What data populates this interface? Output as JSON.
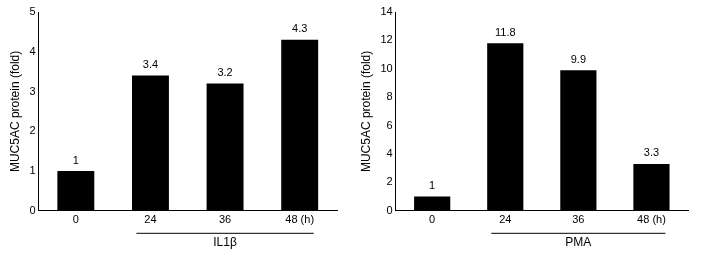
{
  "chart_data": [
    {
      "type": "bar",
      "ylabel": "MUC5AC protein (fold)",
      "categories": [
        "0",
        "24",
        "36",
        "48 (h)"
      ],
      "values": [
        1,
        3.4,
        3.2,
        4.3
      ],
      "color": "#000000",
      "ylim": [
        0,
        5
      ],
      "yticks": [
        0,
        1,
        2,
        3,
        4,
        5
      ],
      "grid": false,
      "data_labels": true,
      "annotation": "IL1β"
    },
    {
      "type": "bar",
      "ylabel": "MUC5AC protein (fold)",
      "categories": [
        "0",
        "24",
        "36",
        "48 (h)"
      ],
      "values": [
        1,
        11.8,
        9.9,
        3.3
      ],
      "color": "#000000",
      "ylim": [
        0,
        14
      ],
      "yticks": [
        0,
        2,
        4,
        6,
        8,
        10,
        12,
        14
      ],
      "grid": false,
      "data_labels": true,
      "annotation": "PMA"
    }
  ]
}
